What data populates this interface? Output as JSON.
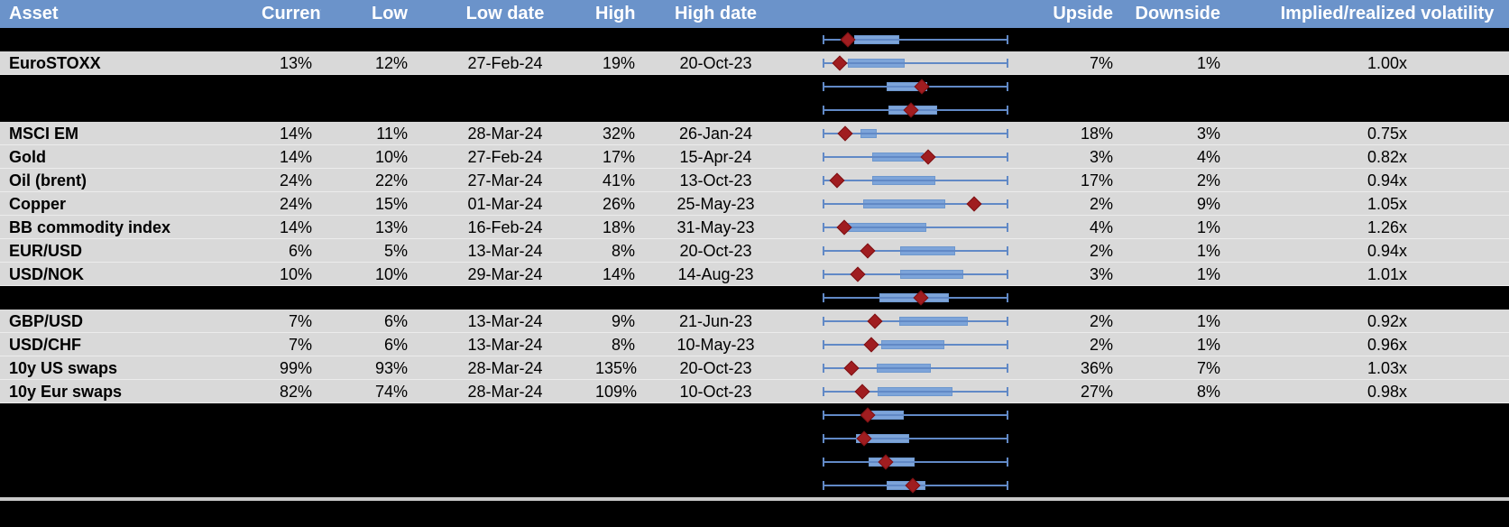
{
  "colors": {
    "header-bg": "#6b93ca",
    "row-gray": "#d9d9d9",
    "hidden-bg": "#000000",
    "box-fill": "#7da4d9",
    "box-border": "#6d97ce",
    "whisker": "#6189c6",
    "diamond": "#a01d20",
    "diamond-border": "#7d1013",
    "divider": "#c9c9c9",
    "text": "#000000"
  },
  "header": {
    "columns": [
      "Asset",
      "Current",
      "Low",
      "Low date",
      "High",
      "High date",
      "",
      "Upside",
      "Downside",
      "Implied/realized volatility"
    ]
  },
  "chart_data": {
    "type": "boxplot",
    "orientation": "horizontal",
    "whisker_frac": [
      0,
      1
    ],
    "rows": [
      {
        "hidden": true,
        "asset": "",
        "current": "",
        "low": "",
        "low_date": "",
        "high": "",
        "high_date": "",
        "upside": "",
        "downside": "",
        "iv_rv": "",
        "plot": {
          "box_lo": 0.167,
          "box_hi": 0.412,
          "marker": 0.137
        }
      },
      {
        "hidden": false,
        "asset": "EuroSTOXX",
        "current": "13%",
        "low": "12%",
        "low_date": "27-Feb-24",
        "high": "19%",
        "high_date": "20-Oct-23",
        "upside": "7%",
        "downside": "1%",
        "iv_rv": "1.00x",
        "plot": {
          "box_lo": 0.132,
          "box_hi": 0.441,
          "marker": 0.093
        }
      },
      {
        "hidden": true,
        "asset": "",
        "current": "",
        "low": "",
        "low_date": "",
        "high": "",
        "high_date": "",
        "upside": "",
        "downside": "",
        "iv_rv": "",
        "plot": {
          "box_lo": 0.343,
          "box_hi": 0.564,
          "marker": 0.539
        }
      },
      {
        "hidden": true,
        "asset": "",
        "current": "",
        "low": "",
        "low_date": "",
        "high": "",
        "high_date": "",
        "upside": "",
        "downside": "",
        "iv_rv": "",
        "plot": {
          "box_lo": 0.353,
          "box_hi": 0.618,
          "marker": 0.48
        }
      },
      {
        "hidden": false,
        "asset": "MSCI EM",
        "current": "14%",
        "low": "11%",
        "low_date": "28-Mar-24",
        "high": "32%",
        "high_date": "26-Jan-24",
        "upside": "18%",
        "downside": "3%",
        "iv_rv": "0.75x",
        "plot": {
          "box_lo": 0.2,
          "box_hi": 0.29,
          "marker": 0.121
        }
      },
      {
        "hidden": false,
        "asset": "Gold",
        "current": "14%",
        "low": "10%",
        "low_date": "27-Feb-24",
        "high": "17%",
        "high_date": "15-Apr-24",
        "upside": "3%",
        "downside": "4%",
        "iv_rv": "0.82x",
        "plot": {
          "box_lo": 0.264,
          "box_hi": 0.545,
          "marker": 0.574
        }
      },
      {
        "hidden": false,
        "asset": "Oil (brent)",
        "current": "24%",
        "low": "22%",
        "low_date": "27-Mar-24",
        "high": "41%",
        "high_date": "13-Oct-23",
        "upside": "17%",
        "downside": "2%",
        "iv_rv": "0.94x",
        "plot": {
          "box_lo": 0.264,
          "box_hi": 0.609,
          "marker": 0.079
        }
      },
      {
        "hidden": false,
        "asset": "Copper",
        "current": "24%",
        "low": "15%",
        "low_date": "01-Mar-24",
        "high": "26%",
        "high_date": "25-May-23",
        "upside": "2%",
        "downside": "9%",
        "iv_rv": "1.05x",
        "plot": {
          "box_lo": 0.216,
          "box_hi": 0.663,
          "marker": 0.823
        }
      },
      {
        "hidden": false,
        "asset": "BB commodity index",
        "current": "14%",
        "low": "13%",
        "low_date": "16-Feb-24",
        "high": "18%",
        "high_date": "31-May-23",
        "upside": "4%",
        "downside": "1%",
        "iv_rv": "1.26x",
        "plot": {
          "box_lo": 0.121,
          "box_hi": 0.557,
          "marker": 0.117
        }
      },
      {
        "hidden": false,
        "asset": "EUR/USD",
        "current": "6%",
        "low": "5%",
        "low_date": "13-Mar-24",
        "high": "8%",
        "high_date": "20-Oct-23",
        "upside": "2%",
        "downside": "1%",
        "iv_rv": "0.94x",
        "plot": {
          "box_lo": 0.418,
          "box_hi": 0.717,
          "marker": 0.244
        }
      },
      {
        "hidden": false,
        "asset": "USD/NOK",
        "current": "10%",
        "low": "10%",
        "low_date": "29-Mar-24",
        "high": "14%",
        "high_date": "14-Aug-23",
        "upside": "3%",
        "downside": "1%",
        "iv_rv": "1.01x",
        "plot": {
          "box_lo": 0.418,
          "box_hi": 0.762,
          "marker": 0.19
        }
      },
      {
        "hidden": true,
        "asset": "",
        "current": "",
        "low": "",
        "low_date": "",
        "high": "",
        "high_date": "",
        "upside": "",
        "downside": "",
        "iv_rv": "",
        "plot": {
          "box_lo": 0.304,
          "box_hi": 0.679,
          "marker": 0.532
        }
      },
      {
        "hidden": false,
        "asset": "GBP/USD",
        "current": "7%",
        "low": "6%",
        "low_date": "13-Mar-24",
        "high": "9%",
        "high_date": "21-Jun-23",
        "upside": "2%",
        "downside": "1%",
        "iv_rv": "0.92x",
        "plot": {
          "box_lo": 0.41,
          "box_hi": 0.786,
          "marker": 0.283
        }
      },
      {
        "hidden": false,
        "asset": "USD/CHF",
        "current": "7%",
        "low": "6%",
        "low_date": "13-Mar-24",
        "high": "8%",
        "high_date": "10-May-23",
        "upside": "2%",
        "downside": "1%",
        "iv_rv": "0.96x",
        "plot": {
          "box_lo": 0.312,
          "box_hi": 0.655,
          "marker": 0.264
        }
      },
      {
        "hidden": false,
        "asset": "10y US swaps",
        "current": "99%",
        "low": "93%",
        "low_date": "28-Mar-24",
        "high": "135%",
        "high_date": "20-Oct-23",
        "upside": "36%",
        "downside": "7%",
        "iv_rv": "1.03x",
        "plot": {
          "box_lo": 0.288,
          "box_hi": 0.585,
          "marker": 0.157
        }
      },
      {
        "hidden": false,
        "asset": "10y Eur swaps",
        "current": "82%",
        "low": "74%",
        "low_date": "28-Mar-24",
        "high": "109%",
        "high_date": "10-Oct-23",
        "upside": "27%",
        "downside": "8%",
        "iv_rv": "0.98x",
        "plot": {
          "box_lo": 0.294,
          "box_hi": 0.701,
          "marker": 0.216
        }
      },
      {
        "hidden": true,
        "asset": "",
        "current": "",
        "low": "",
        "low_date": "",
        "high": "",
        "high_date": "",
        "upside": "",
        "downside": "",
        "iv_rv": "",
        "plot": {
          "box_lo": 0.245,
          "box_hi": 0.436,
          "marker": 0.243
        }
      },
      {
        "hidden": true,
        "asset": "",
        "current": "",
        "low": "",
        "low_date": "",
        "high": "",
        "high_date": "",
        "upside": "",
        "downside": "",
        "iv_rv": "",
        "plot": {
          "box_lo": 0.176,
          "box_hi": 0.466,
          "marker": 0.225
        }
      },
      {
        "hidden": true,
        "asset": "",
        "current": "",
        "low": "",
        "low_date": "",
        "high": "",
        "high_date": "",
        "upside": "",
        "downside": "",
        "iv_rv": "",
        "plot": {
          "box_lo": 0.245,
          "box_hi": 0.495,
          "marker": 0.343
        }
      },
      {
        "hidden": true,
        "asset": "",
        "current": "",
        "low": "",
        "low_date": "",
        "high": "",
        "high_date": "",
        "upside": "",
        "downside": "",
        "iv_rv": "",
        "plot": {
          "box_lo": 0.343,
          "box_hi": 0.554,
          "marker": 0.49
        }
      }
    ]
  }
}
